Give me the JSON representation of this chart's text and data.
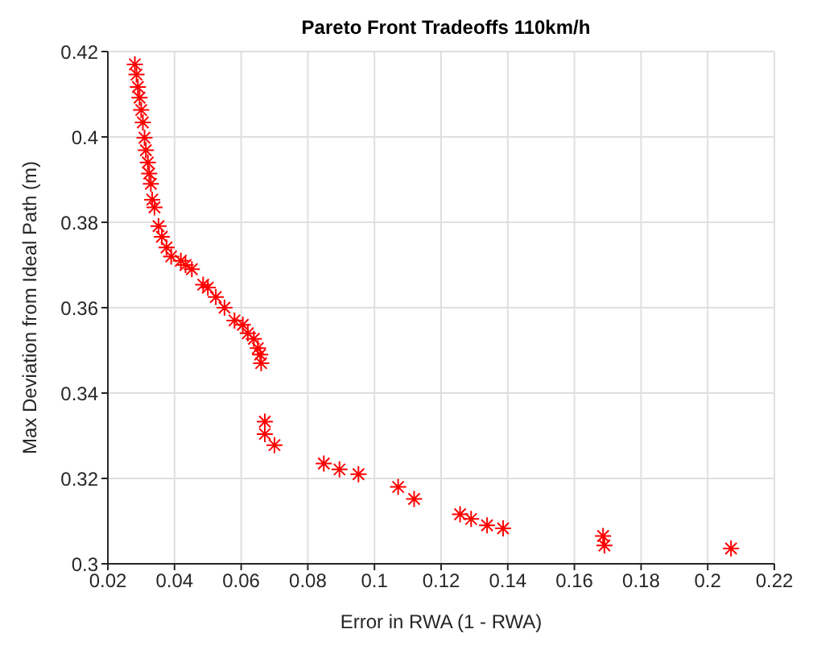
{
  "chart_data": {
    "type": "scatter",
    "title": "Pareto Front Tradeoffs 110km/h",
    "xlabel": "Error in RWA (1 - RWA)",
    "ylabel": "Max Deviation from Ideal Path (m)",
    "marker": "cross",
    "grid": true,
    "xlim": [
      0.02,
      0.22
    ],
    "xticks": [
      0.02,
      0.04,
      0.06,
      0.08,
      0.1,
      0.12,
      0.14,
      0.16,
      0.18,
      0.2,
      0.22
    ],
    "ylim": [
      0.3,
      0.42
    ],
    "yticks": [
      0.3,
      0.32,
      0.34,
      0.36,
      0.38,
      0.4,
      0.42
    ],
    "series": [
      {
        "color": "#ff0000",
        "x": [
          0.0281,
          0.0286,
          0.029,
          0.0295,
          0.03,
          0.0305,
          0.031,
          0.0314,
          0.032,
          0.0324,
          0.0329,
          0.0333,
          0.034,
          0.0352,
          0.0362,
          0.0376,
          0.039,
          0.0419,
          0.0433,
          0.0452,
          0.0486,
          0.05,
          0.0524,
          0.055,
          0.058,
          0.0605,
          0.062,
          0.0638,
          0.065,
          0.0657,
          0.066,
          0.0671,
          0.0671,
          0.07,
          0.0848,
          0.0895,
          0.0952,
          0.1071,
          0.1119,
          0.1257,
          0.129,
          0.1338,
          0.1386,
          0.1686,
          0.169,
          0.207
        ],
        "values": [
          0.417,
          0.4146,
          0.4117,
          0.4092,
          0.4063,
          0.4034,
          0.3998,
          0.3969,
          0.394,
          0.3914,
          0.389,
          0.3853,
          0.3835,
          0.3791,
          0.3766,
          0.3741,
          0.372,
          0.371,
          0.37,
          0.369,
          0.3654,
          0.3647,
          0.3625,
          0.36,
          0.357,
          0.356,
          0.354,
          0.3527,
          0.3505,
          0.349,
          0.347,
          0.3333,
          0.3304,
          0.3278,
          0.3235,
          0.3221,
          0.321,
          0.318,
          0.3152,
          0.3116,
          0.3105,
          0.309,
          0.3083,
          0.3065,
          0.3043,
          0.3036
        ]
      }
    ]
  }
}
